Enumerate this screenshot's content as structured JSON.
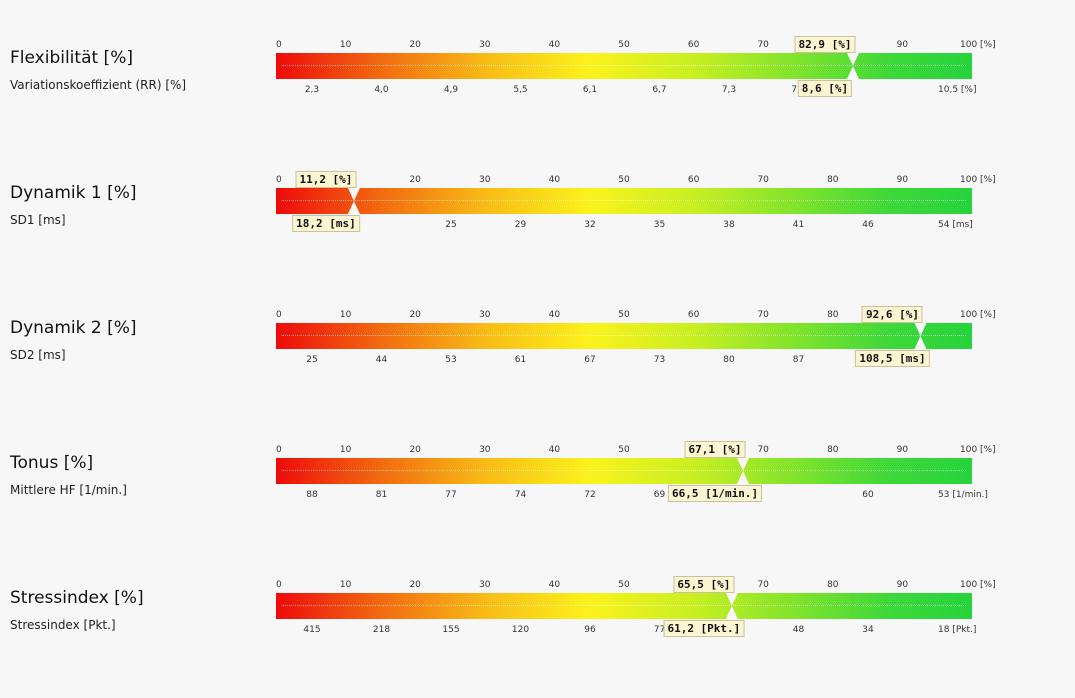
{
  "top_scale": [
    "0",
    "10",
    "20",
    "30",
    "40",
    "50",
    "60",
    "70",
    "80",
    "90",
    "100 [%]"
  ],
  "rows": [
    {
      "title": "Flexibilität [%]",
      "subtitle": "Variationskoeffizient (RR) [%]",
      "percent": 82.9,
      "top_marker": "82,9 [%]",
      "bottom_marker": "8,6 [%]",
      "bottom_scale": [
        "2,3",
        "4,0",
        "4,9",
        "5,5",
        "6,1",
        "6,7",
        "7,3",
        "7,9",
        "",
        "10,5 [%]"
      ]
    },
    {
      "title": "Dynamik 1 [%]",
      "subtitle": "SD1 [ms]",
      "percent": 11.2,
      "top_marker": "11,2 [%]",
      "bottom_marker": "18,2 [ms]",
      "bottom_scale": [
        "12",
        "",
        "25",
        "29",
        "32",
        "35",
        "38",
        "41",
        "46",
        "54 [ms]"
      ]
    },
    {
      "title": "Dynamik 2 [%]",
      "subtitle": "SD2 [ms]",
      "percent": 92.6,
      "top_marker": "92,6 [%]",
      "bottom_marker": "108,5 [ms]",
      "bottom_scale": [
        "25",
        "44",
        "53",
        "61",
        "67",
        "73",
        "80",
        "87",
        "97",
        ""
      ]
    },
    {
      "title": "Tonus [%]",
      "subtitle": "Mittlere HF [1/min.]",
      "percent": 67.1,
      "top_marker": "67,1 [%]",
      "bottom_marker": "66,5 [1/min.]",
      "bottom_scale": [
        "88",
        "81",
        "77",
        "74",
        "72",
        "69",
        "",
        "",
        "60",
        "53 [1/min.]"
      ]
    },
    {
      "title": "Stressindex [%]",
      "subtitle": "Stressindex [Pkt.]",
      "percent": 65.5,
      "top_marker": "65,5 [%]",
      "bottom_marker": "61,2 [Pkt.]",
      "bottom_scale": [
        "415",
        "218",
        "155",
        "120",
        "96",
        "77",
        "",
        "48",
        "34",
        "18 [Pkt.]"
      ]
    }
  ]
}
